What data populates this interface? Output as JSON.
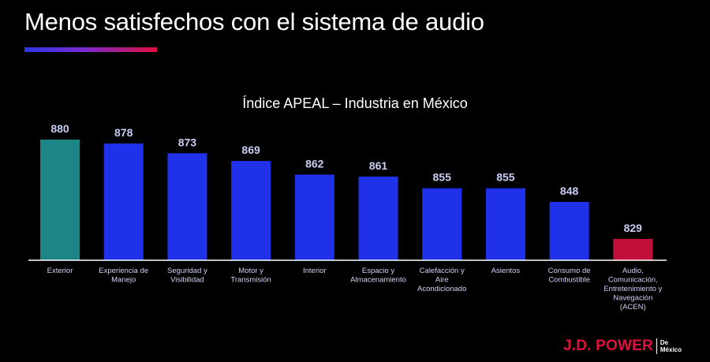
{
  "slide": {
    "title": "Menos satisfechos con el sistema de audio",
    "accent_colors": [
      "#2b36e8",
      "#7a2ad0",
      "#e0103e"
    ]
  },
  "chart_data": {
    "type": "bar",
    "title": "Índice APEAL – Industria en México",
    "xlabel": "",
    "ylabel": "",
    "categories": [
      "Exterior",
      "Experiencia de Manejo",
      "Seguridad y Visibilidad",
      "Motor y Transmisión",
      "Interior",
      "Espacio y Almacenamiento",
      "Calefacción y Aire Acondicionado",
      "Asientos",
      "Consumo de Combustible",
      "Audio, Comunicación, Entretenimiento y Navegación (ACEN)"
    ],
    "category_lines": [
      [
        "Exterior"
      ],
      [
        "Experiencia de",
        "Manejo"
      ],
      [
        "Seguridad y",
        "Visibilidad"
      ],
      [
        "Motor y",
        "Transmisión"
      ],
      [
        "Interior"
      ],
      [
        "Espacio y",
        "Almacenamiento"
      ],
      [
        "Calefacción y",
        "Aire",
        "Acondicionado"
      ],
      [
        "Asientos"
      ],
      [
        "Consumo de",
        "Combustible"
      ],
      [
        "Audio,",
        "Comunicación,",
        "Entretenimiento y",
        "Navegación",
        "(ACEN)"
      ]
    ],
    "values": [
      880,
      878,
      873,
      869,
      862,
      861,
      855,
      855,
      848,
      829
    ],
    "bar_colors": [
      "#1d8585",
      "#1f32ea",
      "#1f32ea",
      "#1f32ea",
      "#1f32ea",
      "#1f32ea",
      "#1f32ea",
      "#1f32ea",
      "#1f32ea",
      "#c10f3b"
    ],
    "ylim": [
      818,
      880
    ],
    "grid": false,
    "legend": "none"
  },
  "logo": {
    "main": "J.D. POWER",
    "sub_line1": "De",
    "sub_line2": "México"
  }
}
